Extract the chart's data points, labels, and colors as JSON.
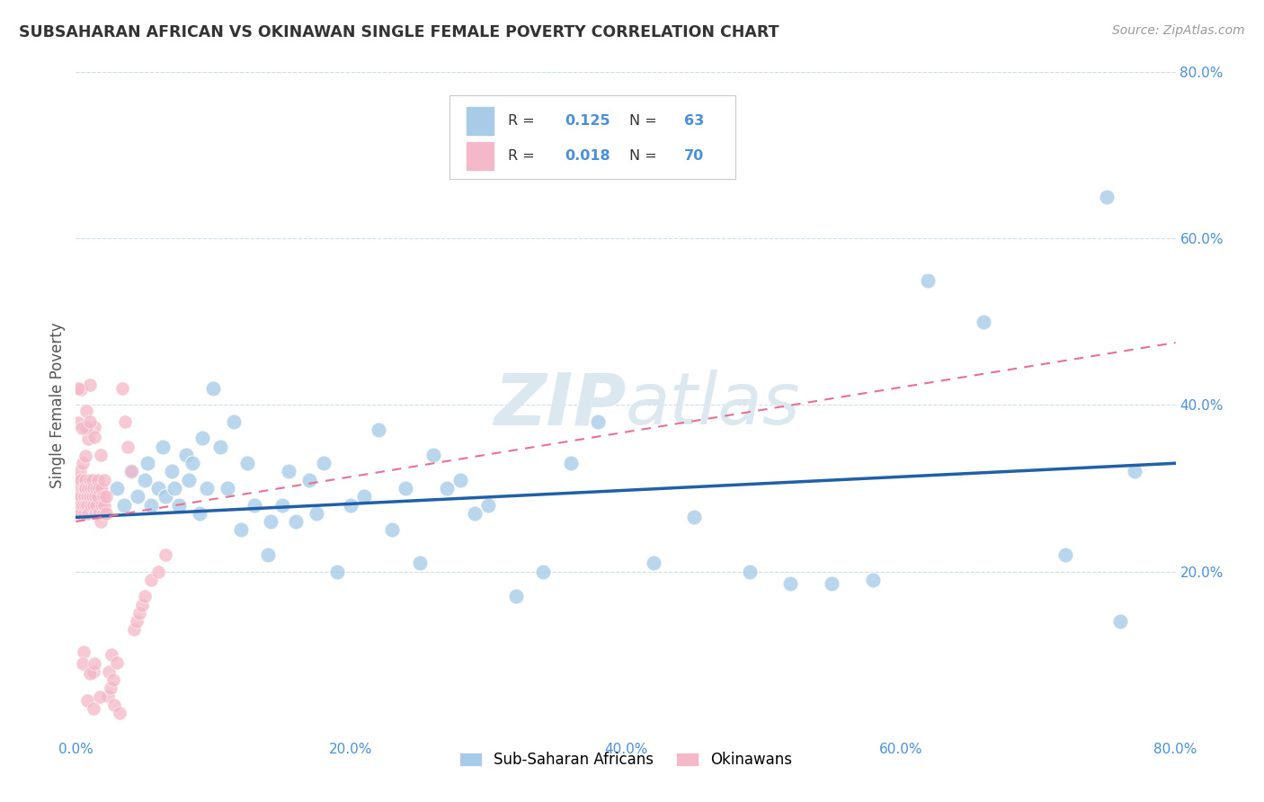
{
  "title": "SUBSAHARAN AFRICAN VS OKINAWAN SINGLE FEMALE POVERTY CORRELATION CHART",
  "source": "Source: ZipAtlas.com",
  "ylabel": "Single Female Poverty",
  "blue_R": 0.125,
  "blue_N": 63,
  "pink_R": 0.018,
  "pink_N": 70,
  "blue_color": "#a8cce8",
  "pink_color": "#f4b8c8",
  "blue_line_color": "#2060a8",
  "pink_line_color": "#e87090",
  "axis_color": "#4a90d9",
  "grid_color": "#d0dde8",
  "title_color": "#333333",
  "source_color": "#999999",
  "ylabel_color": "#555555",
  "watermark_color": "#dce8f0",
  "xlim": [
    0,
    0.8
  ],
  "ylim": [
    0,
    0.8
  ],
  "xticks": [
    0.0,
    0.2,
    0.4,
    0.6,
    0.8
  ],
  "yticks": [
    0.2,
    0.4,
    0.6,
    0.8
  ],
  "blue_x": [
    0.02,
    0.03,
    0.035,
    0.04,
    0.045,
    0.05,
    0.052,
    0.055,
    0.06,
    0.063,
    0.065,
    0.07,
    0.072,
    0.075,
    0.08,
    0.082,
    0.085,
    0.09,
    0.092,
    0.095,
    0.1,
    0.105,
    0.11,
    0.115,
    0.12,
    0.125,
    0.13,
    0.14,
    0.142,
    0.15,
    0.155,
    0.16,
    0.17,
    0.175,
    0.18,
    0.19,
    0.2,
    0.21,
    0.22,
    0.23,
    0.24,
    0.25,
    0.26,
    0.27,
    0.28,
    0.29,
    0.3,
    0.32,
    0.34,
    0.36,
    0.38,
    0.42,
    0.45,
    0.49,
    0.52,
    0.55,
    0.58,
    0.62,
    0.66,
    0.72,
    0.75,
    0.76,
    0.77
  ],
  "blue_y": [
    0.27,
    0.3,
    0.28,
    0.32,
    0.29,
    0.31,
    0.33,
    0.28,
    0.3,
    0.35,
    0.29,
    0.32,
    0.3,
    0.28,
    0.34,
    0.31,
    0.33,
    0.27,
    0.36,
    0.3,
    0.42,
    0.35,
    0.3,
    0.38,
    0.25,
    0.33,
    0.28,
    0.22,
    0.26,
    0.28,
    0.32,
    0.26,
    0.31,
    0.27,
    0.33,
    0.2,
    0.28,
    0.29,
    0.37,
    0.25,
    0.3,
    0.21,
    0.34,
    0.3,
    0.31,
    0.27,
    0.28,
    0.17,
    0.2,
    0.33,
    0.38,
    0.21,
    0.265,
    0.2,
    0.185,
    0.185,
    0.19,
    0.55,
    0.5,
    0.22,
    0.65,
    0.14,
    0.32
  ],
  "pink_x": [
    0.001,
    0.001,
    0.002,
    0.002,
    0.002,
    0.003,
    0.003,
    0.003,
    0.004,
    0.004,
    0.004,
    0.005,
    0.005,
    0.005,
    0.006,
    0.006,
    0.006,
    0.007,
    0.007,
    0.007,
    0.008,
    0.008,
    0.009,
    0.009,
    0.01,
    0.01,
    0.011,
    0.011,
    0.012,
    0.012,
    0.013,
    0.013,
    0.014,
    0.014,
    0.015,
    0.015,
    0.016,
    0.016,
    0.017,
    0.017,
    0.018,
    0.018,
    0.019,
    0.019,
    0.02,
    0.02,
    0.021,
    0.021,
    0.022,
    0.022,
    0.023,
    0.024,
    0.025,
    0.026,
    0.027,
    0.028,
    0.03,
    0.032,
    0.034,
    0.036,
    0.038,
    0.04,
    0.042,
    0.044,
    0.046,
    0.048,
    0.05,
    0.055,
    0.06,
    0.065
  ],
  "pink_y": [
    0.28,
    0.3,
    0.27,
    0.31,
    0.29,
    0.28,
    0.3,
    0.32,
    0.29,
    0.31,
    0.27,
    0.3,
    0.28,
    0.33,
    0.27,
    0.3,
    0.29,
    0.28,
    0.31,
    0.3,
    0.29,
    0.28,
    0.3,
    0.27,
    0.29,
    0.31,
    0.28,
    0.3,
    0.29,
    0.31,
    0.28,
    0.3,
    0.29,
    0.27,
    0.3,
    0.28,
    0.29,
    0.31,
    0.27,
    0.3,
    0.34,
    0.26,
    0.28,
    0.3,
    0.27,
    0.29,
    0.28,
    0.31,
    0.29,
    0.27,
    0.05,
    0.08,
    0.06,
    0.1,
    0.07,
    0.04,
    0.09,
    0.03,
    0.42,
    0.38,
    0.35,
    0.32,
    0.13,
    0.14,
    0.15,
    0.16,
    0.17,
    0.19,
    0.2,
    0.22
  ],
  "blue_trend_x0": 0.0,
  "blue_trend_y0": 0.265,
  "blue_trend_x1": 0.8,
  "blue_trend_y1": 0.33,
  "pink_trend_x0": 0.0,
  "pink_trend_y0": 0.26,
  "pink_trend_x1": 0.8,
  "pink_trend_y1": 0.475
}
